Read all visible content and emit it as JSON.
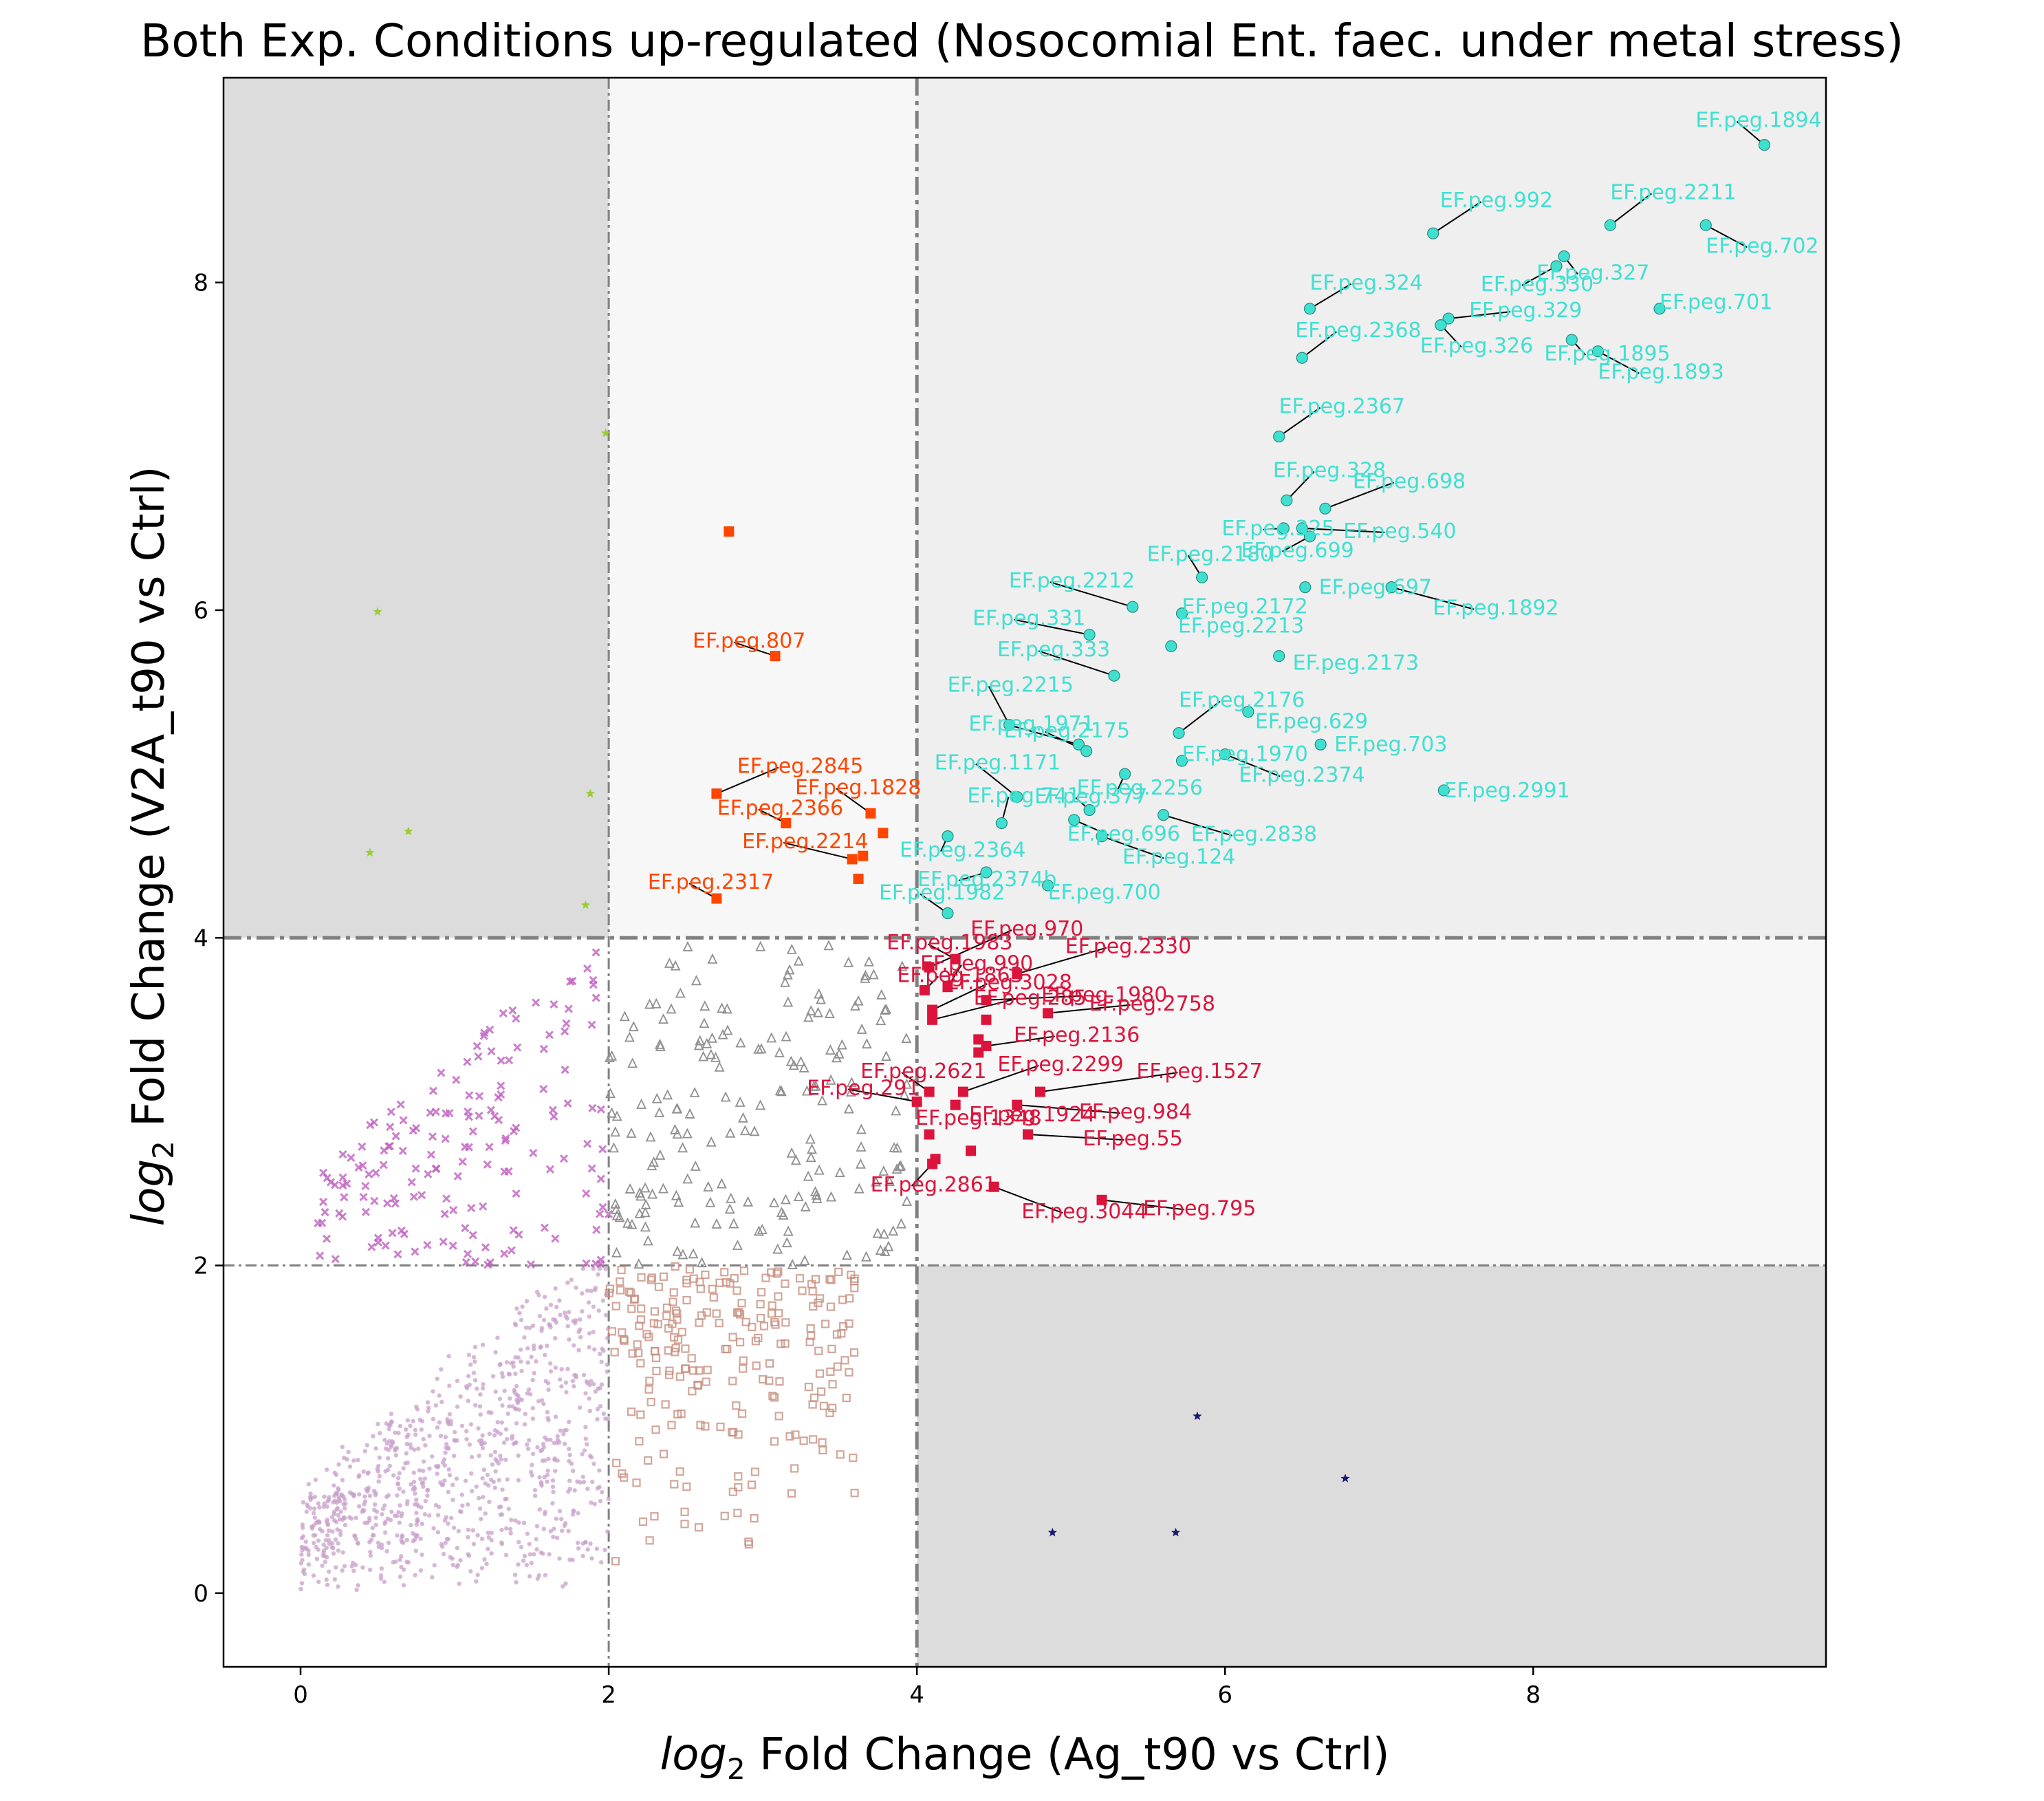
{
  "chart_data": {
    "type": "scatter",
    "title": "Both Exp. Conditions up-regulated (Nosocomial Ent. faec. under metal stress)",
    "xlabel_prefix": "log",
    "xlabel_sub": "2",
    "xlabel_rest": " Fold Change (Ag_t90 vs Ctrl)",
    "ylabel_prefix": "log",
    "ylabel_sub": "2",
    "ylabel_rest": " Fold Change (V2A_t90 vs Ctrl)",
    "xlim": [
      -0.5,
      9.9
    ],
    "ylim": [
      -0.45,
      9.25
    ],
    "xticks": [
      0,
      2,
      4,
      6,
      8
    ],
    "yticks": [
      0,
      2,
      4,
      6,
      8
    ],
    "x_tick_labels": [
      "0",
      "2",
      "4",
      "6",
      "8"
    ],
    "y_tick_labels": [
      "0",
      "2",
      "4",
      "6",
      "8"
    ],
    "thresholds": {
      "inner": 2,
      "outer": 4
    },
    "grid": false,
    "legend": "none",
    "colors": {
      "both_up": "#40e0d0",
      "ag_up_v2a_mid": "#dc143c",
      "v2a_up_ag_mid": "#ff4500",
      "mid_both": "#808080",
      "low": "#d8a8d8",
      "v2a_only": "#9acd32",
      "ag_only": "#191970",
      "shade_dark": "#dcdcdc",
      "shade_mid": "#efefef",
      "shade_light": "#f7f7f7"
    },
    "series": [
      {
        "group": "both_up",
        "color": "#40e0d0",
        "points": [
          {
            "label": "EF.peg.1894",
            "x": 9.5,
            "y": 8.84
          },
          {
            "label": "EF.peg.702",
            "x": 9.12,
            "y": 8.35
          },
          {
            "label": "EF.peg.2211",
            "x": 8.5,
            "y": 8.35
          },
          {
            "label": "EF.peg.992",
            "x": 7.35,
            "y": 8.3
          },
          {
            "label": "EF.peg.327",
            "x": 8.2,
            "y": 8.16
          },
          {
            "label": "EF.peg.330",
            "x": 8.15,
            "y": 8.1
          },
          {
            "label": "EF.peg.701",
            "x": 8.82,
            "y": 7.84
          },
          {
            "label": "EF.peg.324",
            "x": 6.55,
            "y": 7.84
          },
          {
            "label": "EF.peg.329",
            "x": 7.45,
            "y": 7.78
          },
          {
            "label": "EF.peg.326",
            "x": 7.4,
            "y": 7.74
          },
          {
            "label": "EF.peg.2368",
            "x": 6.5,
            "y": 7.54
          },
          {
            "label": "EF.peg.1895",
            "x": 8.25,
            "y": 7.65
          },
          {
            "label": "EF.peg.1893",
            "x": 8.42,
            "y": 7.58
          },
          {
            "label": "EF.peg.2367",
            "x": 6.35,
            "y": 7.06
          },
          {
            "label": "EF.peg.328",
            "x": 6.4,
            "y": 6.67
          },
          {
            "label": "EF.peg.698",
            "x": 6.65,
            "y": 6.62
          },
          {
            "label": "EF.peg.325",
            "x": 6.38,
            "y": 6.5
          },
          {
            "label": "EF.peg.540",
            "x": 6.5,
            "y": 6.5
          },
          {
            "label": "EF.peg.699",
            "x": 6.55,
            "y": 6.45
          },
          {
            "label": "EF.peg.2180",
            "x": 5.85,
            "y": 6.2
          },
          {
            "label": "EF.peg.697",
            "x": 6.52,
            "y": 6.14
          },
          {
            "label": "EF.peg.1892",
            "x": 7.08,
            "y": 6.14
          },
          {
            "label": "EF.peg.2212",
            "x": 5.4,
            "y": 6.02
          },
          {
            "label": "EF.peg.2172",
            "x": 5.72,
            "y": 5.98
          },
          {
            "label": "EF.peg.331",
            "x": 5.12,
            "y": 5.85
          },
          {
            "label": "EF.peg.2213",
            "x": 5.65,
            "y": 5.78
          },
          {
            "label": "EF.peg.2173",
            "x": 6.35,
            "y": 5.72
          },
          {
            "label": "EF.peg.333",
            "x": 5.28,
            "y": 5.6
          },
          {
            "label": "EF.peg.2176",
            "x": 5.7,
            "y": 5.25
          },
          {
            "label": "EF.peg.629",
            "x": 6.15,
            "y": 5.38
          },
          {
            "label": "EF.peg.2215",
            "x": 4.6,
            "y": 5.3
          },
          {
            "label": "EF.peg.1971",
            "x": 5.05,
            "y": 5.18
          },
          {
            "label": "EF.peg.2175",
            "x": 5.1,
            "y": 5.14
          },
          {
            "label": "EF.peg.703",
            "x": 6.62,
            "y": 5.18
          },
          {
            "label": "EF.peg.2374",
            "x": 6.0,
            "y": 5.12
          },
          {
            "label": "EF.peg.1970",
            "x": 5.72,
            "y": 5.08
          },
          {
            "label": "EF.peg.2256",
            "x": 5.35,
            "y": 5.0
          },
          {
            "label": "EF.peg.1171",
            "x": 4.65,
            "y": 4.86
          },
          {
            "label": "EF.peg.2991",
            "x": 7.42,
            "y": 4.9
          },
          {
            "label": "EF.peg.377",
            "x": 5.12,
            "y": 4.78
          },
          {
            "label": "EF.peg.2838",
            "x": 5.6,
            "y": 4.75
          },
          {
            "label": "EF.peg.741",
            "x": 4.55,
            "y": 4.7
          },
          {
            "label": "EF.peg.2364",
            "x": 4.2,
            "y": 4.62
          },
          {
            "label": "EF.peg.696",
            "x": 5.02,
            "y": 4.72
          },
          {
            "label": "EF.peg.124",
            "x": 5.2,
            "y": 4.62
          },
          {
            "label": "EF.peg.2374b",
            "x": 4.45,
            "y": 4.4
          },
          {
            "label": "EF.peg.700",
            "x": 4.85,
            "y": 4.32
          },
          {
            "label": "EF.peg.1982",
            "x": 4.2,
            "y": 4.15
          }
        ]
      },
      {
        "group": "v2a_up_ag_mid",
        "color": "#ff4500",
        "points": [
          {
            "label": "",
            "x": 2.78,
            "y": 6.48
          },
          {
            "label": "EF.peg.807",
            "x": 3.08,
            "y": 5.72
          },
          {
            "label": "EF.peg.2845",
            "x": 2.7,
            "y": 4.88
          },
          {
            "label": "EF.peg.1828",
            "x": 3.7,
            "y": 4.76
          },
          {
            "label": "EF.peg.2366",
            "x": 3.15,
            "y": 4.7
          },
          {
            "label": "",
            "x": 3.78,
            "y": 4.64
          },
          {
            "label": "",
            "x": 3.65,
            "y": 4.5
          },
          {
            "label": "EF.peg.2214",
            "x": 3.58,
            "y": 4.48
          },
          {
            "label": "",
            "x": 3.62,
            "y": 4.36
          },
          {
            "label": "EF.peg.2317",
            "x": 2.7,
            "y": 4.24
          }
        ]
      },
      {
        "group": "ag_up_v2a_mid",
        "color": "#dc143c",
        "points": [
          {
            "label": "EF.peg.1983",
            "x": 4.25,
            "y": 3.87
          },
          {
            "label": "EF.peg.970",
            "x": 4.08,
            "y": 3.82
          },
          {
            "label": "EF.peg.990",
            "x": 4.2,
            "y": 3.7
          },
          {
            "label": "EF.peg.1863",
            "x": 4.05,
            "y": 3.68
          },
          {
            "label": "EF.peg.2330",
            "x": 4.65,
            "y": 3.78
          },
          {
            "label": "EF.peg.1980",
            "x": 4.45,
            "y": 3.62
          },
          {
            "label": "EF.peg.3028",
            "x": 4.1,
            "y": 3.56
          },
          {
            "label": "EF.peg.285",
            "x": 4.1,
            "y": 3.5
          },
          {
            "label": "EF.peg.2758",
            "x": 4.85,
            "y": 3.54
          },
          {
            "label": "",
            "x": 4.45,
            "y": 3.5
          },
          {
            "label": "",
            "x": 4.4,
            "y": 3.38
          },
          {
            "label": "EF.peg.2136",
            "x": 4.45,
            "y": 3.34
          },
          {
            "label": "",
            "x": 4.4,
            "y": 3.3
          },
          {
            "label": "EF.peg.2621",
            "x": 4.08,
            "y": 3.06
          },
          {
            "label": "EF.peg.2299",
            "x": 4.3,
            "y": 3.06
          },
          {
            "label": "EF.peg.1527",
            "x": 4.8,
            "y": 3.06
          },
          {
            "label": "EF.peg.291",
            "x": 4.0,
            "y": 3.0
          },
          {
            "label": "EF.peg.1924",
            "x": 4.25,
            "y": 2.98
          },
          {
            "label": "EF.peg.984",
            "x": 4.65,
            "y": 2.98
          },
          {
            "label": "EF.peg.1348",
            "x": 4.08,
            "y": 2.8
          },
          {
            "label": "EF.peg.55",
            "x": 4.72,
            "y": 2.8
          },
          {
            "label": "",
            "x": 4.35,
            "y": 2.7
          },
          {
            "label": "",
            "x": 4.12,
            "y": 2.65
          },
          {
            "label": "EF.peg.2861",
            "x": 4.1,
            "y": 2.62
          },
          {
            "label": "EF.peg.3044",
            "x": 4.5,
            "y": 2.48
          },
          {
            "label": "EF.peg.795",
            "x": 5.2,
            "y": 2.4
          }
        ]
      },
      {
        "group": "v2a_only",
        "color": "#9acd32",
        "points": [
          {
            "x": 1.98,
            "y": 7.08
          },
          {
            "x": 0.5,
            "y": 5.99
          },
          {
            "x": 1.88,
            "y": 4.88
          },
          {
            "x": 0.7,
            "y": 4.65
          },
          {
            "x": 0.45,
            "y": 4.52
          },
          {
            "x": 1.85,
            "y": 4.2
          }
        ]
      },
      {
        "group": "ag_only",
        "color": "#191970",
        "points": [
          {
            "x": 5.82,
            "y": 1.08
          },
          {
            "x": 6.78,
            "y": 0.7
          },
          {
            "x": 4.88,
            "y": 0.37
          },
          {
            "x": 5.68,
            "y": 0.37
          }
        ]
      }
    ]
  }
}
